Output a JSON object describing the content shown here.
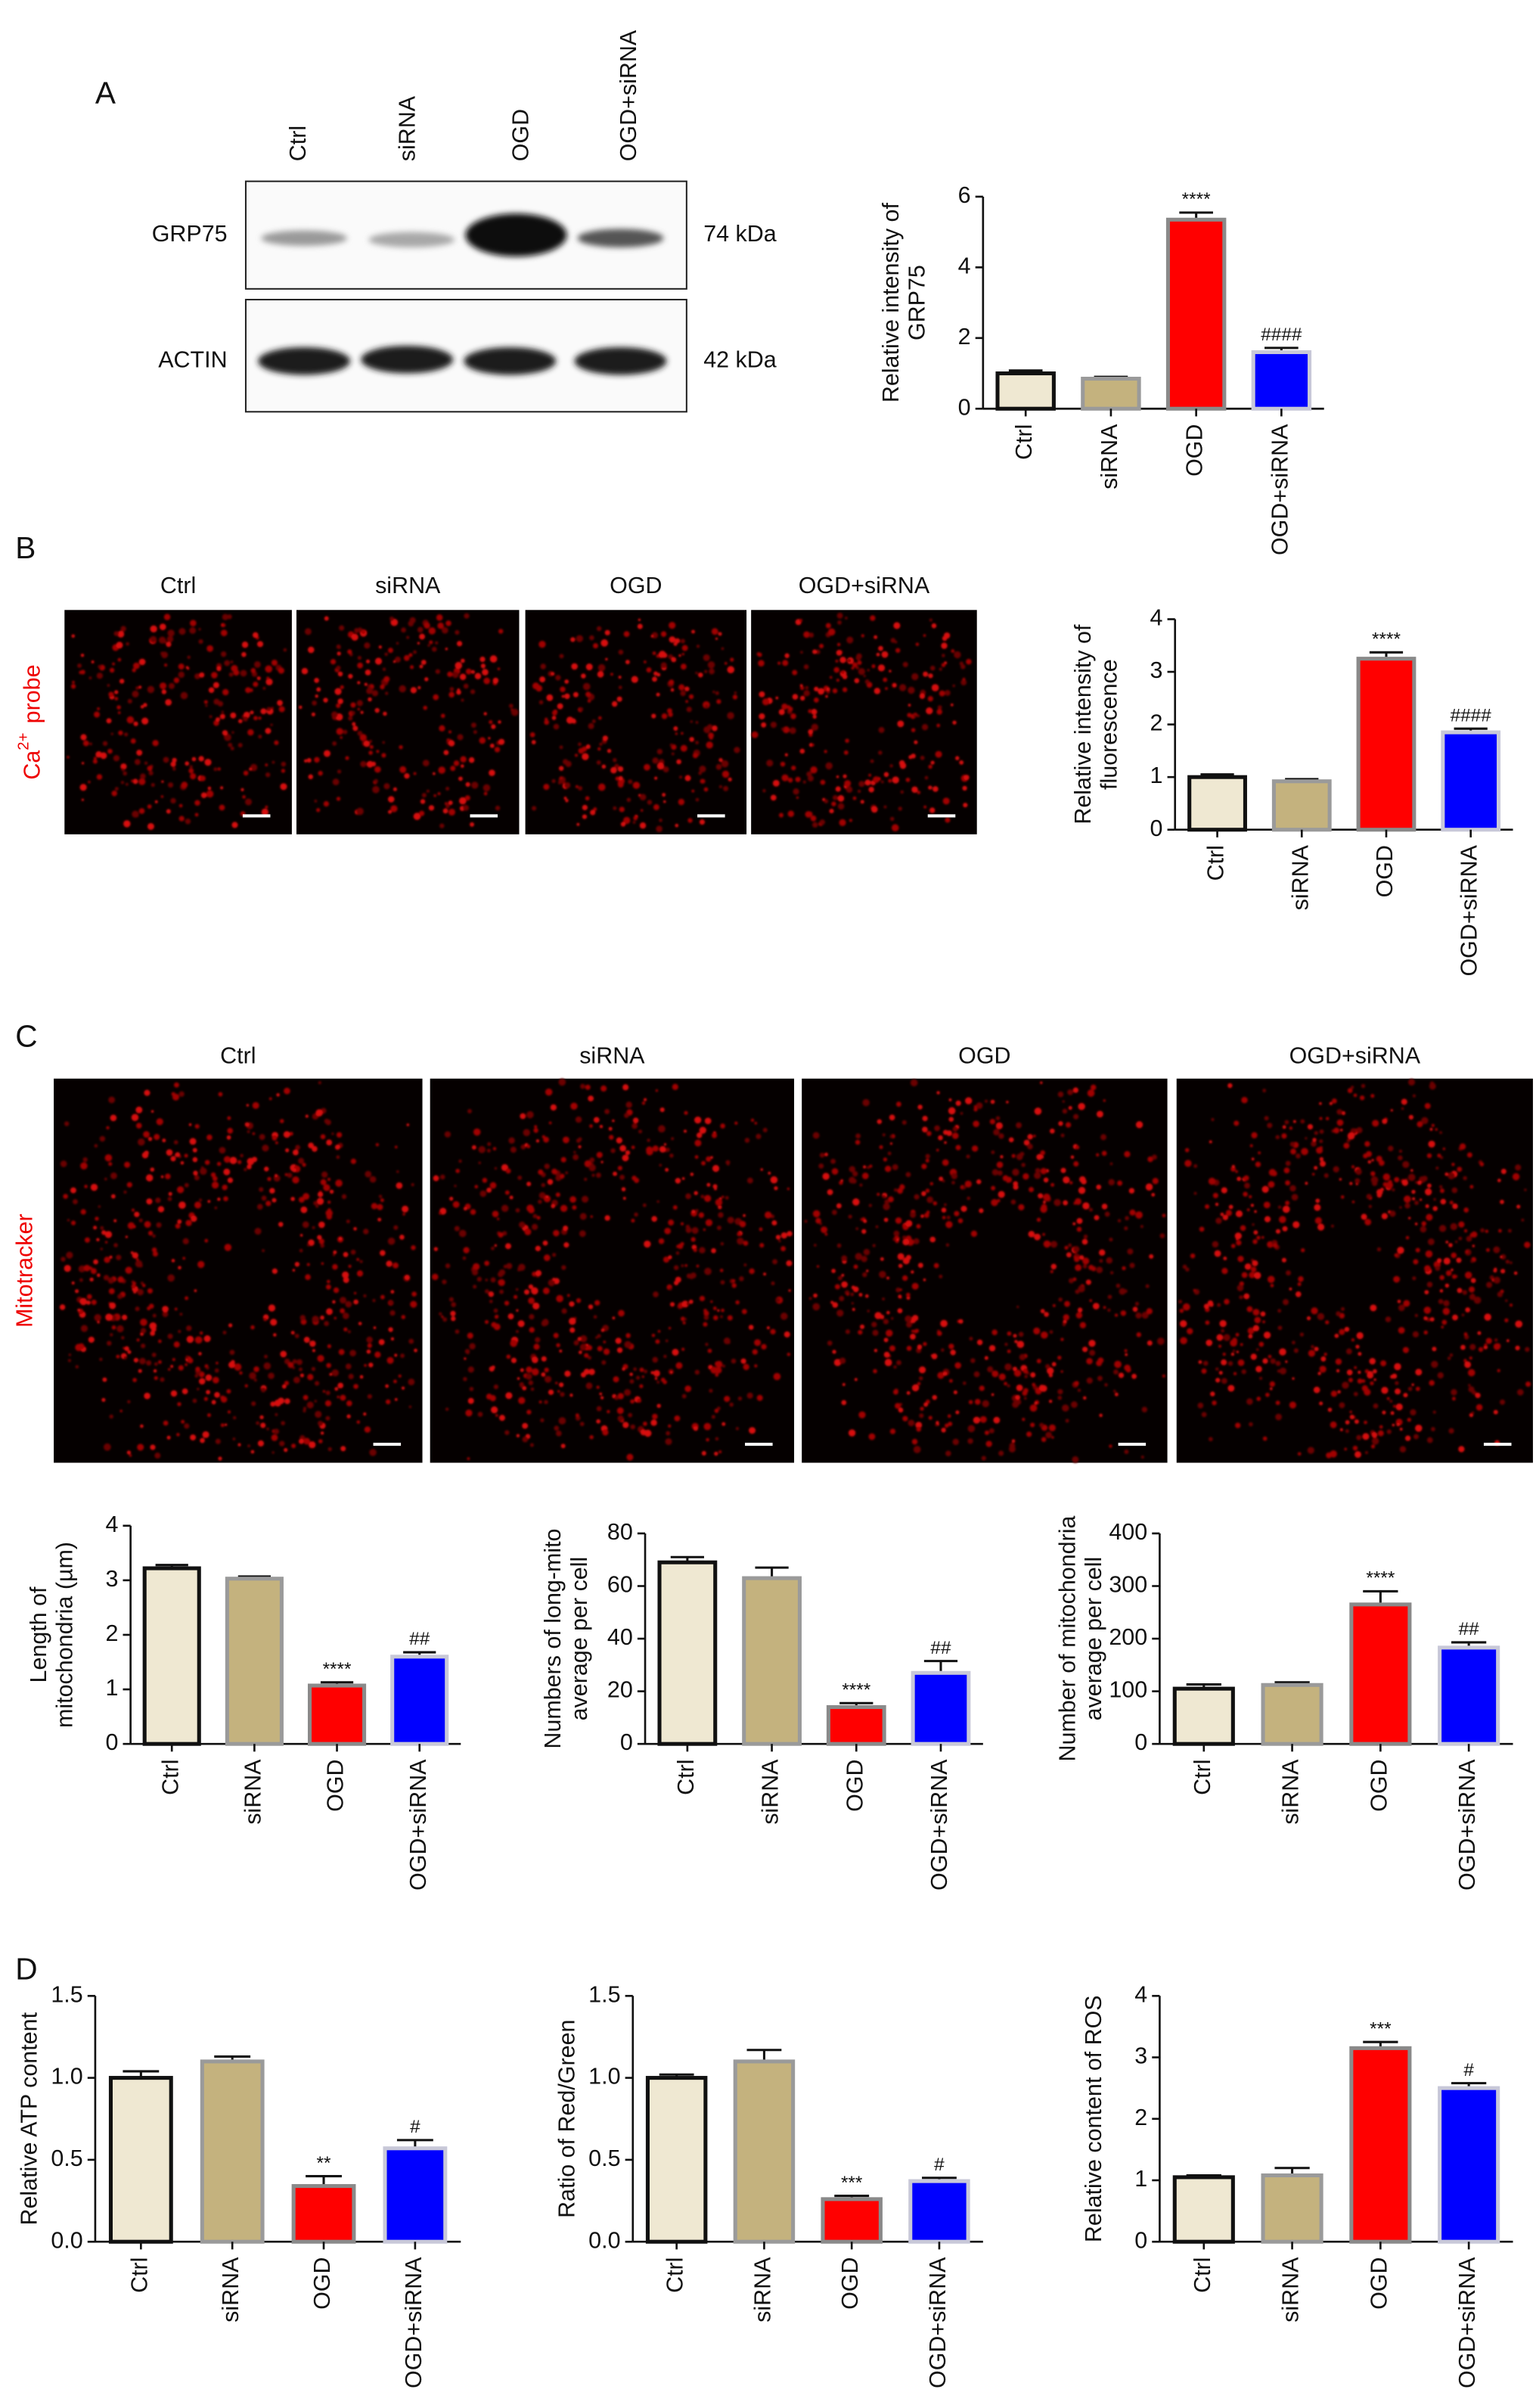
{
  "figure": {
    "panels": [
      "A",
      "B",
      "C",
      "D"
    ],
    "blot": {
      "lanes": [
        "Ctrl",
        "siRNA",
        "OGD",
        "OGD+siRNA"
      ],
      "rows": [
        {
          "protein": "GRP75",
          "size": "74 kDa"
        },
        {
          "protein": "ACTIN",
          "size": "42 kDa"
        }
      ]
    },
    "ca_images": {
      "titles": [
        "Ctrl",
        "siRNA",
        "OGD",
        "OGD+siRNA"
      ],
      "label": {
        "ion": "Ca",
        "charge": "2+",
        "probe": "probe"
      }
    },
    "mito_images": {
      "titles": [
        "Ctrl",
        "siRNA",
        "OGD",
        "OGD+siRNA"
      ],
      "label": "Mitotracker"
    }
  },
  "chart_data": [
    {
      "type": "bar",
      "ylabel": [
        "Relative intensity of",
        "GRP75"
      ],
      "categories": [
        "Ctrl",
        "siRNA",
        "OGD",
        "OGD+siRNA"
      ],
      "values": [
        1.0,
        0.85,
        5.35,
        1.6
      ],
      "errors": [
        0.08,
        0.05,
        0.2,
        0.12
      ],
      "annotations": [
        null,
        null,
        "****",
        "####"
      ],
      "colors": [
        "#efe8d2",
        "#c4b27e",
        "#ff0000",
        "#0000ff"
      ],
      "edgecolors": [
        "#111111",
        "#9a9a9a",
        "#8a8a8a",
        "#c8c8d8"
      ],
      "ylim": [
        0,
        6
      ],
      "yticks": [
        0,
        2,
        4,
        6
      ]
    },
    {
      "type": "bar",
      "ylabel": [
        "Relative intensity of",
        "fluorescence"
      ],
      "categories": [
        "Ctrl",
        "siRNA",
        "OGD",
        "OGD+siRNA"
      ],
      "values": [
        1.0,
        0.92,
        3.25,
        1.85
      ],
      "errors": [
        0.05,
        0.04,
        0.12,
        0.07
      ],
      "annotations": [
        null,
        null,
        "****",
        "####"
      ],
      "colors": [
        "#efe8d2",
        "#c4b27e",
        "#ff0000",
        "#0000ff"
      ],
      "edgecolors": [
        "#111111",
        "#9a9a9a",
        "#8a8a8a",
        "#c8c8d8"
      ],
      "ylim": [
        0,
        4
      ],
      "yticks": [
        0,
        1,
        2,
        3,
        4
      ]
    },
    {
      "type": "bar",
      "ylabel": [
        "Length of",
        "mitochondria (µm)"
      ],
      "categories": [
        "Ctrl",
        "siRNA",
        "OGD",
        "OGD+siRNA"
      ],
      "values": [
        3.22,
        3.03,
        1.07,
        1.6
      ],
      "errors": [
        0.06,
        0.04,
        0.06,
        0.08
      ],
      "annotations": [
        null,
        null,
        "****",
        "##"
      ],
      "colors": [
        "#efe8d2",
        "#c4b27e",
        "#ff0000",
        "#0000ff"
      ],
      "edgecolors": [
        "#111111",
        "#9a9a9a",
        "#8a8a8a",
        "#c8c8d8"
      ],
      "ylim": [
        0,
        4
      ],
      "yticks": [
        0,
        1,
        2,
        3,
        4
      ]
    },
    {
      "type": "bar",
      "ylabel": [
        "Numbers of long-mito",
        "average per cell"
      ],
      "categories": [
        "Ctrl",
        "siRNA",
        "OGD",
        "OGD+siRNA"
      ],
      "values": [
        69,
        63,
        14,
        27
      ],
      "errors": [
        2,
        4,
        1.5,
        4.5
      ],
      "annotations": [
        null,
        null,
        "****",
        "##"
      ],
      "colors": [
        "#efe8d2",
        "#c4b27e",
        "#ff0000",
        "#0000ff"
      ],
      "edgecolors": [
        "#111111",
        "#9a9a9a",
        "#8a8a8a",
        "#c8c8d8"
      ],
      "ylim": [
        0,
        80
      ],
      "yticks": [
        0,
        20,
        40,
        60,
        80
      ]
    },
    {
      "type": "bar",
      "ylabel": [
        "Number of mitochondria",
        "average per cell"
      ],
      "categories": [
        "Ctrl",
        "siRNA",
        "OGD",
        "OGD+siRNA"
      ],
      "values": [
        105,
        112,
        265,
        183
      ],
      "errors": [
        8,
        5,
        25,
        10
      ],
      "annotations": [
        null,
        null,
        "****",
        "##"
      ],
      "colors": [
        "#efe8d2",
        "#c4b27e",
        "#ff0000",
        "#0000ff"
      ],
      "edgecolors": [
        "#111111",
        "#9a9a9a",
        "#8a8a8a",
        "#c8c8d8"
      ],
      "ylim": [
        0,
        400
      ],
      "yticks": [
        0,
        100,
        200,
        300,
        400
      ]
    },
    {
      "type": "bar",
      "ylabel": [
        "Relative ATP content"
      ],
      "categories": [
        "Ctrl",
        "siRNA",
        "OGD",
        "OGD+siRNA"
      ],
      "values": [
        1.0,
        1.1,
        0.34,
        0.57
      ],
      "errors": [
        0.04,
        0.03,
        0.06,
        0.05
      ],
      "annotations": [
        null,
        null,
        "**",
        "#"
      ],
      "colors": [
        "#efe8d2",
        "#c4b27e",
        "#ff0000",
        "#0000ff"
      ],
      "edgecolors": [
        "#111111",
        "#9a9a9a",
        "#8a8a8a",
        "#c8c8d8"
      ],
      "ylim": [
        0,
        1.5
      ],
      "yticks": [
        {
          "value": 0,
          "label": "0.0"
        },
        0.5,
        {
          "value": 1,
          "label": "1.0"
        },
        1.5
      ]
    },
    {
      "type": "bar",
      "ylabel": [
        "Ratio of Red/Green"
      ],
      "categories": [
        "Ctrl",
        "siRNA",
        "OGD",
        "OGD+siRNA"
      ],
      "values": [
        1.0,
        1.1,
        0.26,
        0.37
      ],
      "errors": [
        0.02,
        0.07,
        0.02,
        0.02
      ],
      "annotations": [
        null,
        null,
        "***",
        "#"
      ],
      "colors": [
        "#efe8d2",
        "#c4b27e",
        "#ff0000",
        "#0000ff"
      ],
      "edgecolors": [
        "#111111",
        "#9a9a9a",
        "#8a8a8a",
        "#c8c8d8"
      ],
      "ylim": [
        0,
        1.5
      ],
      "yticks": [
        {
          "value": 0,
          "label": "0.0"
        },
        0.5,
        {
          "value": 1,
          "label": "1.0"
        },
        1.5
      ]
    },
    {
      "type": "bar",
      "ylabel": [
        "Relative content of ROS"
      ],
      "categories": [
        "Ctrl",
        "siRNA",
        "OGD",
        "OGD+siRNA"
      ],
      "values": [
        1.05,
        1.08,
        3.15,
        2.5
      ],
      "errors": [
        0.03,
        0.12,
        0.1,
        0.08
      ],
      "annotations": [
        null,
        null,
        "***",
        "#"
      ],
      "colors": [
        "#efe8d2",
        "#c4b27e",
        "#ff0000",
        "#0000ff"
      ],
      "edgecolors": [
        "#111111",
        "#9a9a9a",
        "#8a8a8a",
        "#c8c8d8"
      ],
      "ylim": [
        0,
        4
      ],
      "yticks": [
        0,
        1,
        2,
        3,
        4
      ]
    }
  ]
}
